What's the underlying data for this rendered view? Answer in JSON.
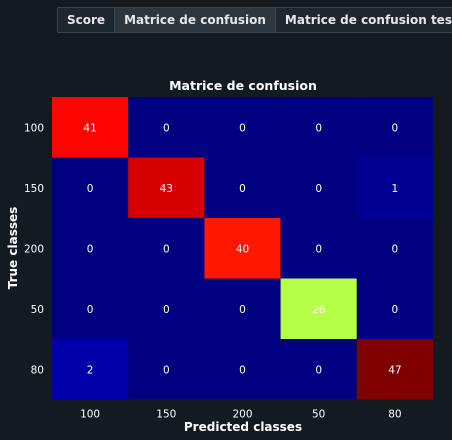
{
  "tabs": [
    {
      "label": "Score",
      "active": false
    },
    {
      "label": "Matrice de confusion",
      "active": true
    },
    {
      "label": "Matrice de confusion test",
      "active": false
    }
  ],
  "chart_data": {
    "type": "heatmap",
    "title": "Matrice de confusion",
    "xlabel": "Predicted classes",
    "ylabel": "True classes",
    "x_categories": [
      "100",
      "150",
      "200",
      "50",
      "80"
    ],
    "y_categories": [
      "100",
      "150",
      "200",
      "50",
      "80"
    ],
    "values": [
      [
        41,
        0,
        0,
        0,
        0
      ],
      [
        0,
        43,
        0,
        0,
        1
      ],
      [
        0,
        0,
        40,
        0,
        0
      ],
      [
        0,
        0,
        0,
        26,
        0
      ],
      [
        2,
        0,
        0,
        0,
        47
      ]
    ],
    "colormap": "jet",
    "vmin": 0,
    "vmax": 47,
    "colors": {
      "background": "#131a20",
      "cell_grid": "#131a20",
      "text": "#ffffff"
    }
  }
}
